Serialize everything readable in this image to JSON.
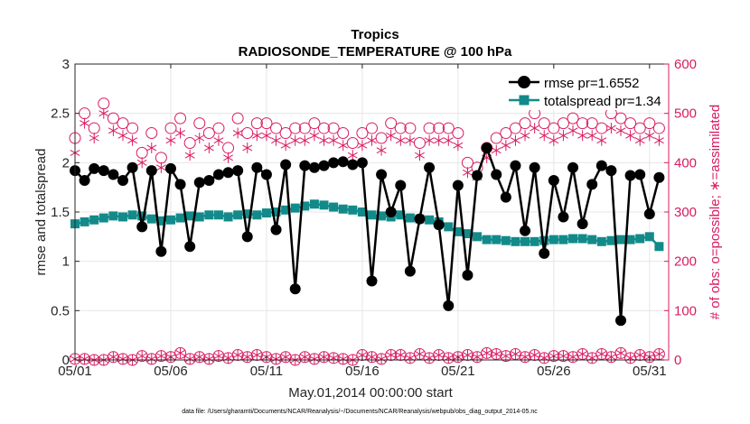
{
  "chart_data": {
    "type": "line",
    "title": "Tropics",
    "subtitle": "RADIOSONDE_TEMPERATURE @ 100 hPa",
    "xlabel": "May.01,2014 00:00:00 start",
    "ylabel": "rmse and totalspread",
    "ylabel_right": "# of obs: o=possible; ∗=assimilated",
    "footnote": "data file: /Users/gharamti/Documents/NCAR/Reanalysis/~/Documents/NCAR/Reanalysis/webpub/obs_diag_output_2014-05.nc",
    "xlim": [
      1,
      32
    ],
    "ylim": [
      0,
      3
    ],
    "ylim_right": [
      0,
      600
    ],
    "x_ticks": [
      1,
      6,
      11,
      16,
      21,
      26,
      31
    ],
    "x_tick_labels": [
      "05/01",
      "05/06",
      "05/11",
      "05/16",
      "05/21",
      "05/26",
      "05/31"
    ],
    "y_ticks": [
      "0",
      "0.5",
      "1",
      "1.5",
      "2",
      "2.5",
      "3"
    ],
    "y_ticks_right": [
      "0",
      "100",
      "200",
      "300",
      "400",
      "500",
      "600"
    ],
    "grid": true,
    "legend_position": "top-right",
    "x": [
      1,
      1.5,
      2,
      2.5,
      3,
      3.5,
      4,
      4.5,
      5,
      5.5,
      6,
      6.5,
      7,
      7.5,
      8,
      8.5,
      9,
      9.5,
      10,
      10.5,
      11,
      11.5,
      12,
      12.5,
      13,
      13.5,
      14,
      14.5,
      15,
      15.5,
      16,
      16.5,
      17,
      17.5,
      18,
      18.5,
      19,
      19.5,
      20,
      20.5,
      21,
      21.5,
      22,
      22.5,
      23,
      23.5,
      24,
      24.5,
      25,
      25.5,
      26,
      26.5,
      27,
      27.5,
      28,
      28.5,
      29,
      29.5,
      30,
      30.5,
      31,
      31.5
    ],
    "series": [
      {
        "name": "rmse pr=1.6552",
        "color": "#000000",
        "axis": "left",
        "values": [
          1.92,
          1.82,
          1.94,
          1.92,
          1.88,
          1.82,
          1.95,
          1.35,
          1.92,
          1.1,
          1.94,
          1.78,
          1.15,
          1.8,
          1.82,
          1.88,
          1.9,
          1.92,
          1.25,
          1.95,
          1.88,
          1.32,
          1.98,
          0.72,
          1.97,
          1.95,
          1.97,
          2.0,
          2.01,
          1.98,
          2.0,
          0.8,
          1.88,
          1.5,
          1.77,
          0.9,
          1.43,
          1.95,
          1.37,
          0.55,
          1.77,
          0.86,
          1.87,
          2.15,
          1.88,
          1.65,
          1.97,
          1.31,
          1.95,
          1.08,
          1.82,
          1.45,
          1.95,
          1.38,
          1.78,
          1.97,
          1.92,
          0.4,
          1.87,
          1.88,
          1.48,
          1.85
        ]
      },
      {
        "name": "totalspread pr=1.34",
        "color": "#138a8a",
        "axis": "left",
        "values": [
          1.38,
          1.4,
          1.42,
          1.44,
          1.46,
          1.45,
          1.47,
          1.46,
          1.43,
          1.41,
          1.42,
          1.44,
          1.46,
          1.45,
          1.47,
          1.47,
          1.45,
          1.47,
          1.48,
          1.47,
          1.49,
          1.5,
          1.52,
          1.54,
          1.56,
          1.58,
          1.57,
          1.55,
          1.53,
          1.52,
          1.5,
          1.47,
          1.46,
          1.45,
          1.47,
          1.44,
          1.43,
          1.42,
          1.4,
          1.35,
          1.3,
          1.28,
          1.25,
          1.22,
          1.22,
          1.21,
          1.2,
          1.2,
          1.2,
          1.21,
          1.22,
          1.22,
          1.23,
          1.23,
          1.22,
          1.2,
          1.21,
          1.22,
          1.22,
          1.23,
          1.25,
          1.15
        ]
      },
      {
        "name": "obs possible",
        "color": "#d81b60",
        "axis": "right",
        "marker": "circle",
        "values": [
          450,
          500,
          470,
          520,
          490,
          480,
          470,
          420,
          460,
          410,
          470,
          490,
          440,
          480,
          460,
          470,
          430,
          490,
          460,
          480,
          480,
          470,
          460,
          470,
          470,
          480,
          470,
          470,
          460,
          440,
          460,
          470,
          450,
          480,
          470,
          470,
          440,
          470,
          470,
          470,
          460,
          400,
          390,
          430,
          450,
          460,
          470,
          480,
          500,
          480,
          470,
          480,
          490,
          480,
          480,
          470,
          500,
          490,
          480,
          470,
          480,
          470
        ]
      },
      {
        "name": "obs assimilated",
        "color": "#d81b60",
        "axis": "right",
        "marker": "star",
        "values": [
          420,
          480,
          450,
          500,
          465,
          455,
          445,
          400,
          430,
          390,
          445,
          460,
          415,
          450,
          430,
          445,
          410,
          460,
          430,
          455,
          455,
          445,
          435,
          445,
          445,
          455,
          445,
          445,
          435,
          415,
          435,
          445,
          425,
          455,
          445,
          445,
          415,
          445,
          445,
          445,
          435,
          380,
          370,
          410,
          425,
          435,
          445,
          455,
          470,
          455,
          445,
          455,
          465,
          455,
          455,
          445,
          470,
          465,
          455,
          445,
          455,
          445
        ]
      },
      {
        "name": "obs possible (bottom)",
        "color": "#d81b60",
        "axis": "right",
        "marker": "circle",
        "values": [
          2,
          2,
          0,
          0,
          6,
          2,
          0,
          8,
          2,
          8,
          6,
          14,
          2,
          6,
          2,
          8,
          4,
          10,
          6,
          10,
          6,
          2,
          6,
          0,
          6,
          2,
          6,
          4,
          2,
          0,
          10,
          6,
          2,
          10,
          10,
          4,
          12,
          4,
          10,
          4,
          6,
          10,
          6,
          14,
          12,
          8,
          12,
          6,
          10,
          4,
          8,
          8,
          6,
          12,
          4,
          12,
          6,
          14,
          4,
          10,
          6,
          12
        ]
      },
      {
        "name": "obs assimilated (bottom)",
        "color": "#d81b60",
        "axis": "right",
        "marker": "star",
        "values": [
          2,
          2,
          0,
          0,
          6,
          2,
          0,
          8,
          2,
          8,
          6,
          14,
          2,
          6,
          2,
          8,
          4,
          10,
          6,
          10,
          6,
          2,
          6,
          0,
          6,
          2,
          6,
          4,
          2,
          0,
          10,
          6,
          2,
          10,
          10,
          4,
          12,
          4,
          10,
          4,
          6,
          10,
          6,
          14,
          12,
          8,
          12,
          6,
          10,
          4,
          8,
          8,
          6,
          12,
          4,
          12,
          6,
          14,
          4,
          10,
          6,
          12
        ]
      }
    ]
  }
}
